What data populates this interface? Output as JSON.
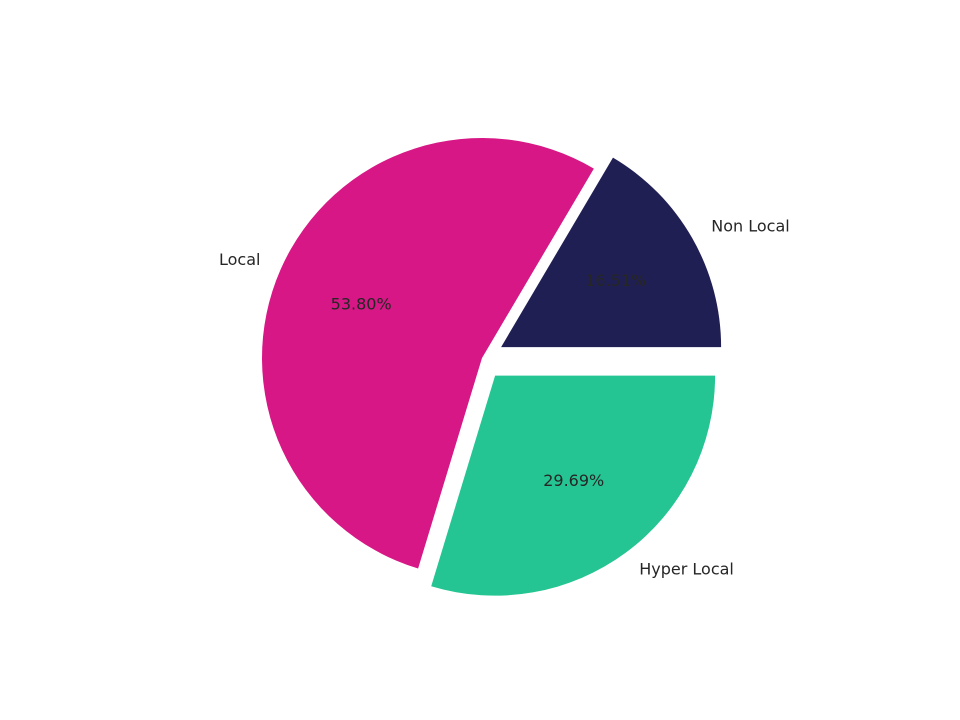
{
  "chart_data": {
    "type": "pie",
    "categories": [
      "Non Local",
      "Local",
      "Hyper Local"
    ],
    "values": [
      16.51,
      53.8,
      29.69
    ],
    "value_labels": [
      "16.51%",
      "53.80%",
      "29.69%"
    ],
    "colors": [
      "#1f1f54",
      "#d61785",
      "#24c592"
    ],
    "explode": [
      0.1,
      0,
      0.1
    ]
  }
}
